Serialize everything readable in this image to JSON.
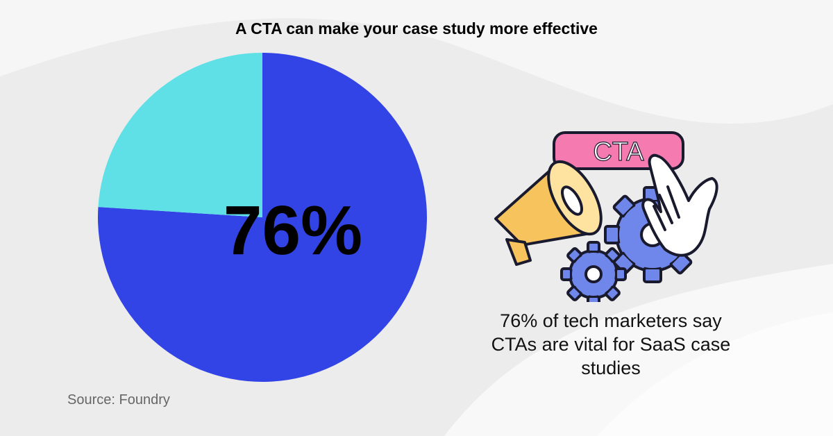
{
  "chart_data": {
    "type": "pie",
    "title": "A CTA can make your case study more effective",
    "values": [
      76,
      24
    ],
    "colors": [
      "#3344e6",
      "#5ee0e6"
    ],
    "center_label": "76%"
  },
  "illustration": {
    "button_label": "CTA",
    "icons": [
      "megaphone-icon",
      "gear-icon",
      "hand-pointer-icon"
    ]
  },
  "caption": "76% of tech marketers say CTAs are vital for SaaS case studies",
  "source": "Source:  Foundry"
}
